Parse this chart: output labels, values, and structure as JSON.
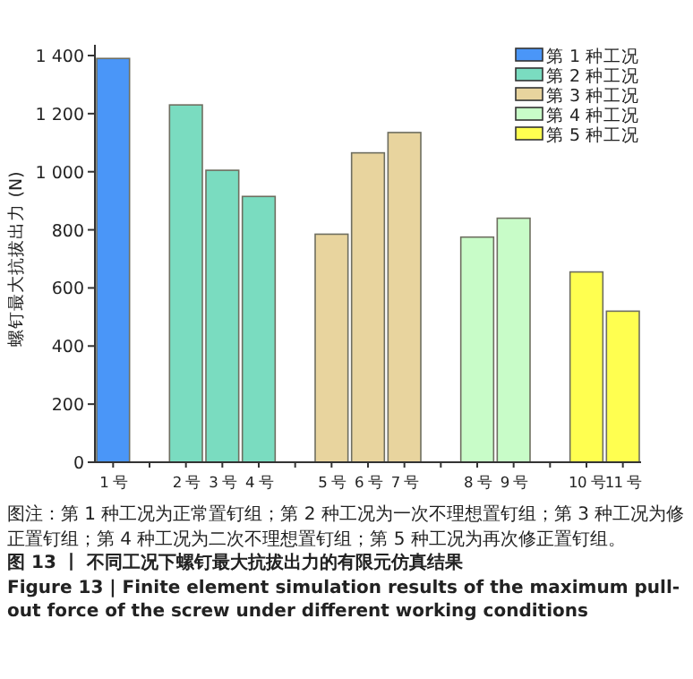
{
  "chart_data": {
    "type": "bar",
    "ylabel": "螺钉最大抗拔出力 (N)",
    "categories": [
      "1 号",
      null,
      "2 号",
      "3 号",
      "4 号",
      null,
      "5 号",
      "6 号",
      "7 号",
      null,
      "8 号",
      "9 号",
      null,
      "10 号",
      "11 号"
    ],
    "series": [
      {
        "name": "第 1 种工况",
        "color": "#4a96f8",
        "values": [
          1390,
          null,
          null,
          null,
          null,
          null,
          null,
          null,
          null,
          null,
          null,
          null,
          null,
          null,
          null
        ]
      },
      {
        "name": "第 2 种工况",
        "color": "#7adcc0",
        "values": [
          null,
          null,
          1230,
          1005,
          915,
          null,
          null,
          null,
          null,
          null,
          null,
          null,
          null,
          null,
          null
        ]
      },
      {
        "name": "第 3 种工况",
        "color": "#e8d49e",
        "values": [
          null,
          null,
          null,
          null,
          null,
          null,
          785,
          1065,
          1135,
          null,
          null,
          null,
          null,
          null,
          null
        ]
      },
      {
        "name": "第 4 种工况",
        "color": "#c8fcc8",
        "values": [
          null,
          null,
          null,
          null,
          null,
          null,
          null,
          null,
          null,
          null,
          775,
          840,
          null,
          null,
          null
        ]
      },
      {
        "name": "第 5 种工况",
        "color": "#ffff50",
        "values": [
          null,
          null,
          null,
          null,
          null,
          null,
          null,
          null,
          null,
          null,
          null,
          null,
          null,
          655,
          520
        ]
      }
    ],
    "ylim": [
      0,
      1400
    ],
    "yticks": [
      0,
      200,
      400,
      600,
      800,
      {
        "value": 1000,
        "label": "1 000"
      },
      {
        "value": 1200,
        "label": "1 200"
      },
      {
        "value": 1400,
        "label": "1 400"
      }
    ],
    "legend": "top right",
    "annotations": [
      "图注：第 1 种工况为正常置钉组；第 2 种工况为一次不理想置钉组；第 3 种工况为修正置钉组；第 4 种工况为二次不理想置钉组；第 5 种工况为再次修正置钉组。",
      "图 13 丨 不同工况下螺钉最大抗拔出力的有限元仿真结果",
      "Figure 13 | Finite element simulation results of the maximum pull-out force of the screw under different working conditions"
    ]
  }
}
